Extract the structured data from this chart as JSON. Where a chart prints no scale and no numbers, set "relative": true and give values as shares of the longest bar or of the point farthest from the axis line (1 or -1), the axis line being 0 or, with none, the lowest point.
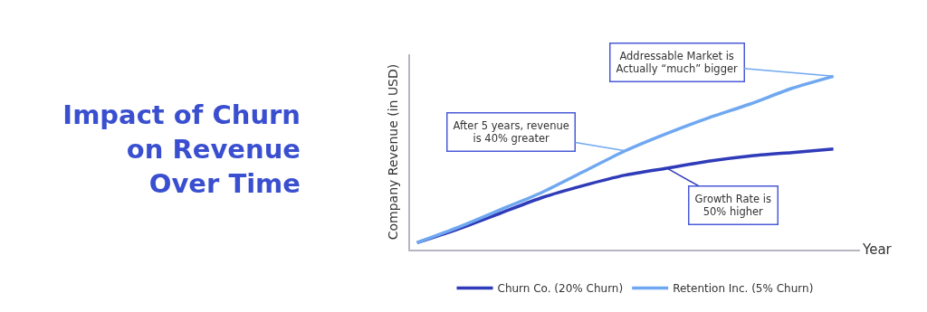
{
  "chart_data": {
    "type": "line",
    "title": "Impact of Churn\non Revenue\nOver Time",
    "xlabel": "Year",
    "ylabel": "Company Revenue (in USD)",
    "relative": true,
    "legend": "bottom",
    "categories": [
      null,
      null,
      null,
      null,
      null,
      null,
      null,
      null,
      null,
      null,
      null
    ],
    "series": [
      {
        "name": "Churn Co. (20% Churn)",
        "color": "#2f3bb8",
        "values": [
          0.04,
          0.12,
          0.21,
          0.3,
          0.37,
          0.43,
          0.47,
          0.51,
          0.54,
          0.56,
          0.58
        ]
      },
      {
        "name": "Retention Inc. (5% Churn)",
        "color": "#6fa8f0",
        "values": [
          0.04,
          0.13,
          0.23,
          0.33,
          0.45,
          0.57,
          0.67,
          0.76,
          0.84,
          0.93,
          1
        ]
      }
    ],
    "annotations": [
      "After 5 years, revenue\nis 40% greater",
      "Growth Rate is\n50% higher",
      "Addressable Market is\nActually “much” bigger"
    ]
  }
}
